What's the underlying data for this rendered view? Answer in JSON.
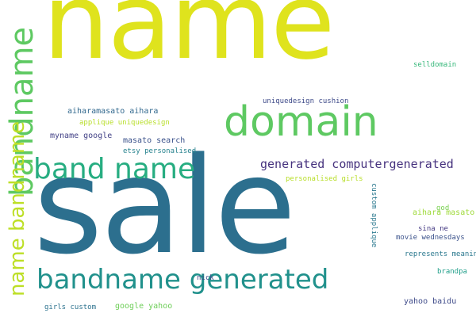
{
  "words": {
    "name": "name",
    "sale": "sale",
    "domain": "domain",
    "bandname_vertical": "bandname",
    "band_name": "band name",
    "bandname_generated": "bandname generated",
    "name_bandname_vertical": "name bandname",
    "generated_computergenerated": "generated computergenerated",
    "selldomain": "selldomain",
    "uniquedesign_cushion": "uniquedesign cushion",
    "aiharamasato_aihara": "aiharamasato aihara",
    "applique_uniquedesign": "applique uniquedesign",
    "myname_google": "myname google",
    "masato_search": "masato search",
    "etsy_personalised": "etsy personalised",
    "personalised_girls": "personalised girls",
    "god": "god",
    "aihara_masato": "aihara masato",
    "sina_ne": "sina ne",
    "movie_wednesdays": "movie wednesdays",
    "represents_meaning": "represents meaning",
    "brandpa": "brandpa",
    "nick": "nick",
    "girls_custom": "girls custom",
    "google_yahoo": "google yahoo",
    "yahoo_baidu": "yahoo baidu",
    "custom_applique": "custom applique"
  }
}
